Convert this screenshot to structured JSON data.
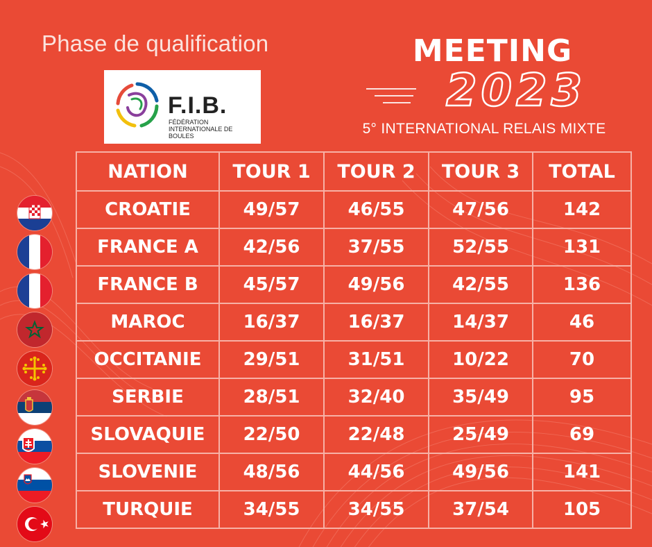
{
  "header": {
    "phase": "Phase de qualification",
    "logo": {
      "abbr": "F.I.B.",
      "name": "Fédération Internationale de Boules"
    },
    "meeting": "MEETING",
    "year": "2023",
    "subtitle": "5° INTERNATIONAL RELAIS MIXTE"
  },
  "table": {
    "columns": [
      "NATION",
      "TOUR 1",
      "TOUR 2",
      "TOUR 3",
      "TOTAL"
    ],
    "rows": [
      {
        "nation": "CROATIE",
        "tour1": "49/57",
        "tour2": "46/55",
        "tour3": "47/56",
        "total": "142",
        "flag": "croatia-flag-icon"
      },
      {
        "nation": "FRANCE A",
        "tour1": "42/56",
        "tour2": "37/55",
        "tour3": "52/55",
        "total": "131",
        "flag": "france-flag-icon"
      },
      {
        "nation": "FRANCE B",
        "tour1": "45/57",
        "tour2": "49/56",
        "tour3": "42/55",
        "total": "136",
        "flag": "france-flag-icon"
      },
      {
        "nation": "MAROC",
        "tour1": "16/37",
        "tour2": "16/37",
        "tour3": "14/37",
        "total": "46",
        "flag": "morocco-flag-icon"
      },
      {
        "nation": "OCCITANIE",
        "tour1": "29/51",
        "tour2": "31/51",
        "tour3": "10/22",
        "total": "70",
        "flag": "occitanie-flag-icon"
      },
      {
        "nation": "SERBIE",
        "tour1": "28/51",
        "tour2": "32/40",
        "tour3": "35/49",
        "total": "95",
        "flag": "serbia-flag-icon"
      },
      {
        "nation": "SLOVAQUIE",
        "tour1": "22/50",
        "tour2": "22/48",
        "tour3": "25/49",
        "total": "69",
        "flag": "slovakia-flag-icon"
      },
      {
        "nation": "SLOVENIE",
        "tour1": "48/56",
        "tour2": "44/56",
        "tour3": "49/56",
        "total": "141",
        "flag": "slovenia-flag-icon"
      },
      {
        "nation": "TURQUIE",
        "tour1": "34/55",
        "tour2": "34/55",
        "tour3": "37/54",
        "total": "105",
        "flag": "turkey-flag-icon"
      }
    ]
  },
  "colors": {
    "background": "#ea4a35",
    "grid": "#f7b1a6",
    "text": "#ffffff"
  }
}
